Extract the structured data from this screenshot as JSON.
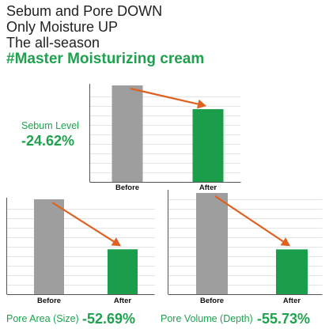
{
  "headline": {
    "line1": "Sebum and Pore DOWN",
    "line2": "Only Moisture UP",
    "line3": "The all-season",
    "line4": "#Master Moisturizing cream"
  },
  "colors": {
    "before": "#9e9e9e",
    "after": "#1a9e4b",
    "arrow": "#e0601f",
    "accent": "#1fa14f"
  },
  "chart_data": [
    {
      "type": "bar",
      "label": "Sebum Level",
      "change": "-24.62%",
      "categories": [
        "Before",
        "After"
      ],
      "values": [
        100,
        75.38
      ],
      "ylim": [
        0,
        100
      ],
      "grid": true,
      "y_tick_labels": false
    },
    {
      "type": "bar",
      "label": "Pore Area (Size)",
      "change": "-52.69%",
      "categories": [
        "Before",
        "After"
      ],
      "values": [
        100,
        47.31
      ],
      "ylim": [
        0,
        100
      ],
      "grid": true,
      "y_tick_labels": false
    },
    {
      "type": "bar",
      "label": "Pore Volume (Depth)",
      "change": "-55.73%",
      "categories": [
        "Before",
        "After"
      ],
      "values": [
        100,
        44.27
      ],
      "ylim": [
        0,
        100
      ],
      "grid": true,
      "y_tick_labels": false
    }
  ]
}
